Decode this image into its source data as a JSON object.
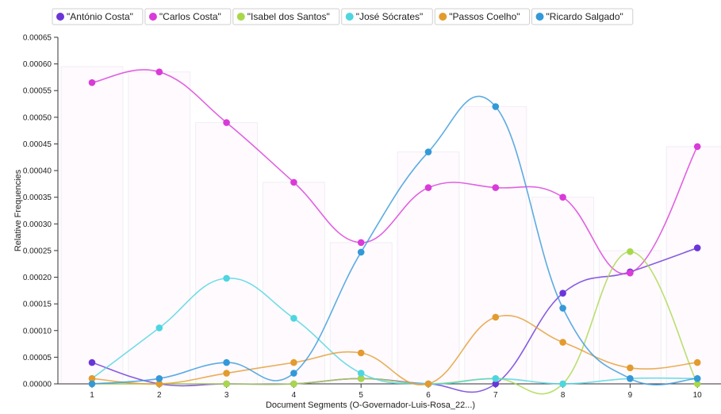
{
  "chart_data": {
    "type": "line",
    "xlabel": "Document Segments (O-Governador-Luis-Rosa_22...)",
    "ylabel": "Relative Frequencies",
    "x": [
      1,
      2,
      3,
      4,
      5,
      6,
      7,
      8,
      9,
      10
    ],
    "x_tick_labels": [
      "1",
      "2",
      "3",
      "4",
      "5",
      "6",
      "7",
      "8",
      "9",
      "10"
    ],
    "ylim": [
      0,
      0.00065
    ],
    "y_ticks": [
      0,
      5e-05,
      0.0001,
      0.00015,
      0.0002,
      0.00025,
      0.0003,
      0.00035,
      0.0004,
      0.00045,
      0.0005,
      0.00055,
      0.0006,
      0.00065
    ],
    "y_tick_labels": [
      "0.00000",
      "0.00005",
      "0.00010",
      "0.00015",
      "0.00020",
      "0.00025",
      "0.00030",
      "0.00035",
      "0.00040",
      "0.00045",
      "0.00050",
      "0.00055",
      "0.00060",
      "0.00065"
    ],
    "grid": false,
    "legend_position": "top",
    "series": [
      {
        "name": "\"António Costa\"",
        "color": "#6a35d8",
        "values": [
          4e-05,
          0,
          0,
          0,
          1e-05,
          0,
          0,
          0.00017,
          0.00021,
          0.000255
        ]
      },
      {
        "name": "\"Carlos Costa\"",
        "color": "#d93bd9",
        "values": [
          0.000565,
          0.000585,
          0.00049,
          0.000378,
          0.000265,
          0.000368,
          0.000368,
          0.00035,
          0.000208,
          0.000445
        ]
      },
      {
        "name": "\"Isabel dos Santos\"",
        "color": "#a8d84a",
        "values": [
          0,
          0,
          0,
          0,
          1e-05,
          0,
          1e-05,
          0,
          0.000248,
          0
        ]
      },
      {
        "name": "\"José Sócrates\"",
        "color": "#4dd6e0",
        "values": [
          1e-05,
          0.000105,
          0.000198,
          0.000123,
          2e-05,
          0,
          1e-05,
          0,
          1e-05,
          1e-05
        ]
      },
      {
        "name": "\"Passos Coelho\"",
        "color": "#e39b2e",
        "values": [
          1e-05,
          0,
          2e-05,
          4e-05,
          5.8e-05,
          0,
          0.000125,
          7.8e-05,
          3e-05,
          4e-05
        ]
      },
      {
        "name": "\"Ricardo Salgado\"",
        "color": "#3399d9",
        "values": [
          0,
          1e-05,
          4e-05,
          2e-05,
          0.000247,
          0.000435,
          0.00052,
          0.000142,
          1e-05,
          1e-05
        ]
      }
    ],
    "bar_background": {
      "color": "#d93bd9",
      "values": [
        0.000595,
        0.000585,
        0.00049,
        0.000378,
        0.000265,
        0.000435,
        0.00052,
        0.00035,
        0.00025,
        0.000445
      ]
    }
  }
}
